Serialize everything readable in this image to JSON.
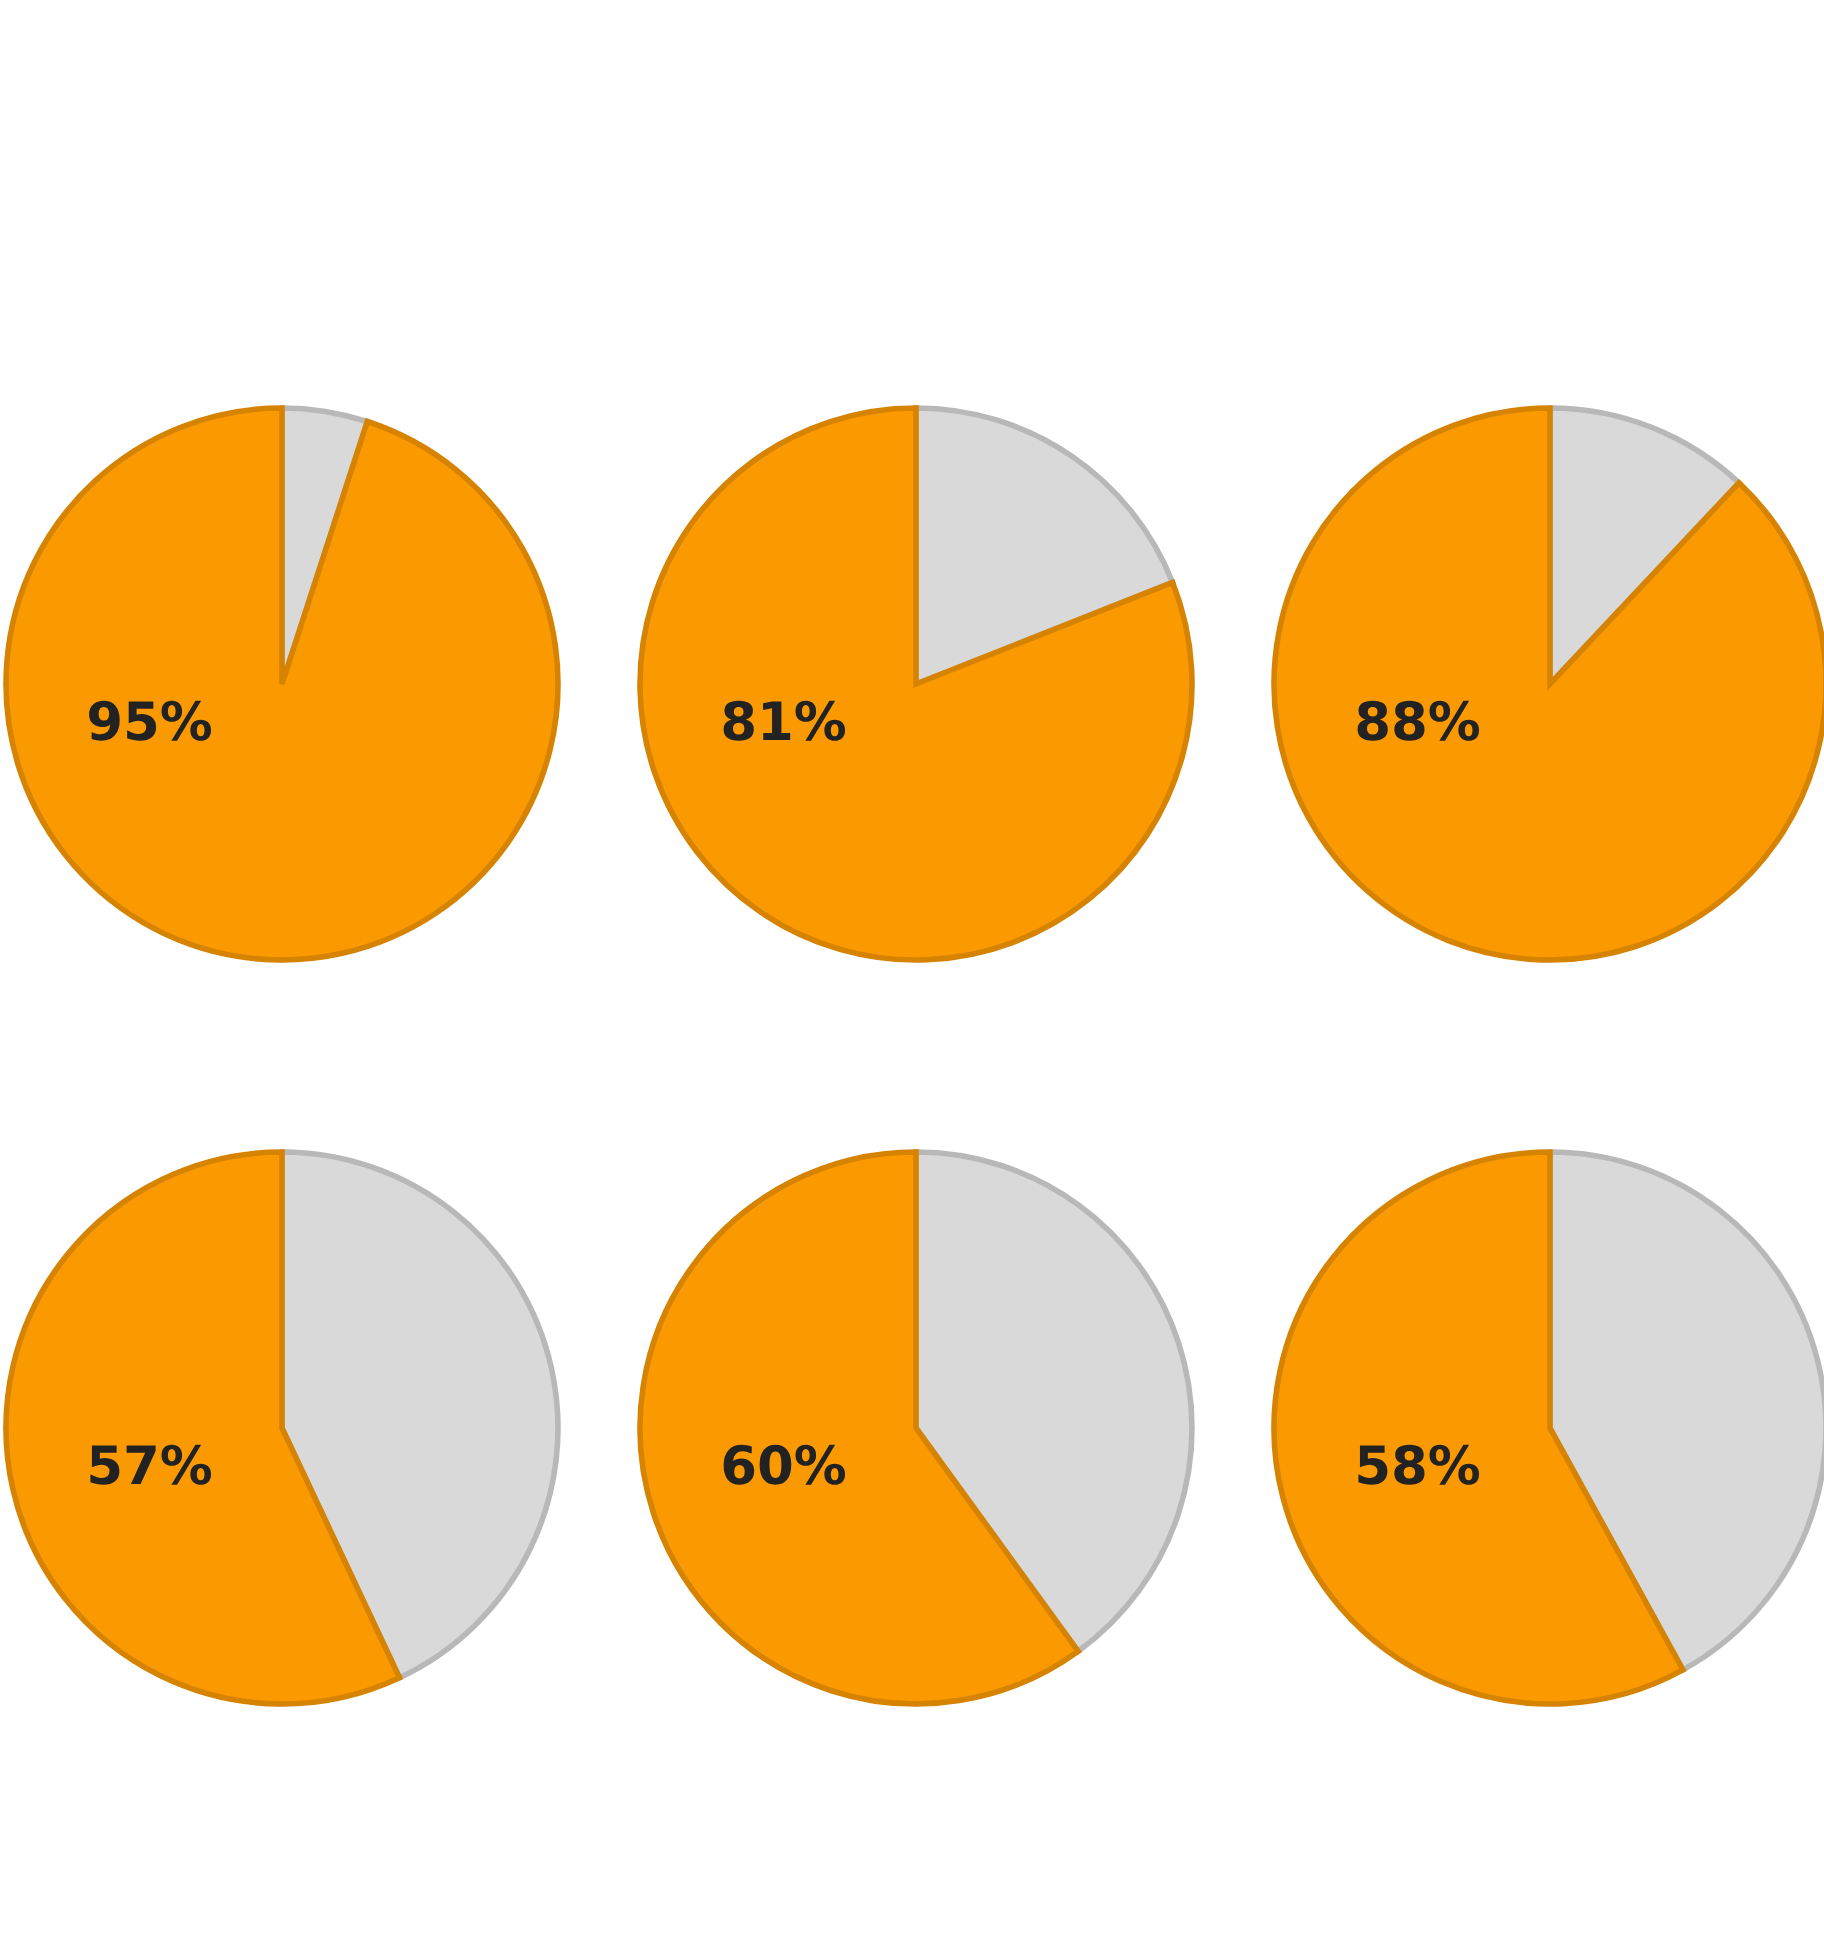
{
  "chart_data": [
    {
      "type": "pie",
      "categories": [
        null,
        null
      ],
      "values": [
        95,
        5
      ],
      "colors": [
        "#fb9a00",
        "#d9d9d9"
      ],
      "value_labels": [
        "95%",
        null
      ]
    },
    {
      "type": "pie",
      "categories": [
        null,
        null
      ],
      "values": [
        81,
        19
      ],
      "colors": [
        "#fb9a00",
        "#d9d9d9"
      ],
      "value_labels": [
        "81%",
        null
      ]
    },
    {
      "type": "pie",
      "categories": [
        null,
        null
      ],
      "values": [
        88,
        12
      ],
      "colors": [
        "#fb9a00",
        "#d9d9d9"
      ],
      "value_labels": [
        "88%",
        null
      ]
    },
    {
      "type": "pie",
      "categories": [
        null,
        null
      ],
      "values": [
        57,
        43
      ],
      "colors": [
        "#fb9a00",
        "#d9d9d9"
      ],
      "value_labels": [
        "57%",
        null
      ]
    },
    {
      "type": "pie",
      "categories": [
        null,
        null
      ],
      "values": [
        60,
        40
      ],
      "colors": [
        "#fb9a00",
        "#d9d9d9"
      ],
      "value_labels": [
        "60%",
        null
      ]
    },
    {
      "type": "pie",
      "categories": [
        null,
        null
      ],
      "values": [
        58,
        42
      ],
      "colors": [
        "#fb9a00",
        "#d9d9d9"
      ],
      "value_labels": [
        "58%",
        null
      ]
    }
  ]
}
